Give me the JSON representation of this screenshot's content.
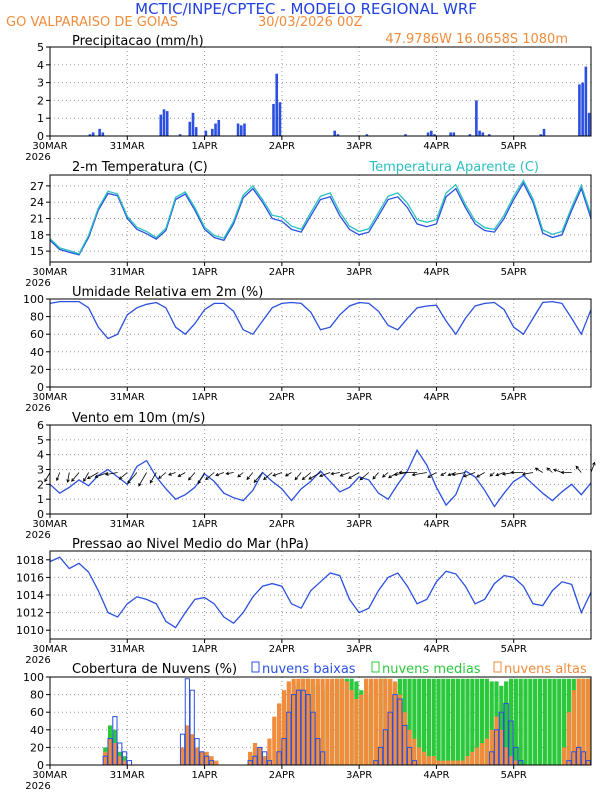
{
  "header": {
    "institution": "MCTIC/INPE/CPTEC - MODELO REGIONAL WRF",
    "location": "GO VALPARAISO DE GOIAS",
    "run_date": "30/03/2026 00Z",
    "coords": "47.9786W 16.0658S 1080m"
  },
  "colors": {
    "blue": "#2b50e0",
    "cyan": "#2cc0c0",
    "orange": "#f08c3c",
    "green": "#2cc83c",
    "header_blue": "#2040e0",
    "grid": "#9a9a9a"
  },
  "x_axis": {
    "ticks": [
      "30MAR",
      "31MAR",
      "1APR",
      "2APR",
      "3APR",
      "4APR",
      "5APR"
    ],
    "year": "2026",
    "hours_per_day": 24,
    "range_hours": [
      0,
      168
    ]
  },
  "chart_data": [
    {
      "id": "precip",
      "type": "bar",
      "title": "Precipitacao (mm/h)",
      "ylim": [
        0,
        5
      ],
      "yticks": [
        0,
        1,
        2,
        3,
        4,
        5
      ],
      "x_hours": [
        12,
        13,
        15,
        16,
        34,
        35,
        36,
        40,
        43,
        44,
        45,
        48,
        50,
        51,
        52,
        58,
        59,
        60,
        69,
        70,
        71,
        88,
        89,
        98,
        110,
        117,
        118,
        119,
        124,
        125,
        130,
        132,
        133,
        134,
        136,
        152,
        153,
        164,
        165,
        166,
        167
      ],
      "values": [
        0.1,
        0.2,
        0.4,
        0.2,
        1.2,
        1.5,
        1.4,
        0.1,
        0.8,
        1.3,
        0.5,
        0.3,
        0.4,
        0.7,
        0.9,
        0.7,
        0.6,
        0.7,
        1.8,
        3.5,
        1.9,
        0.3,
        0.1,
        0.1,
        0.1,
        0.2,
        0.3,
        0.1,
        0.2,
        0.2,
        0.1,
        2.0,
        0.3,
        0.2,
        0.1,
        0.1,
        0.4,
        2.9,
        3.0,
        3.9,
        1.3
      ]
    },
    {
      "id": "temperature",
      "type": "line",
      "title": "2-m Temperatura (C)",
      "legend": "Temperatura Aparente (C)",
      "ylim": [
        13,
        29
      ],
      "yticks": [
        15,
        18,
        21,
        24,
        27
      ],
      "x_step_hours": 3,
      "series": [
        {
          "name": "2-m Temperatura (C)",
          "color": "blue",
          "values": [
            17.0,
            15.3,
            14.8,
            14.3,
            17.5,
            22.5,
            25.6,
            25.2,
            21.0,
            19.0,
            18.2,
            17.2,
            18.8,
            24.5,
            25.5,
            22.5,
            19.0,
            17.5,
            17.0,
            20.0,
            24.8,
            26.5,
            24.0,
            21.0,
            20.5,
            19.0,
            18.5,
            21.5,
            24.5,
            25.0,
            21.5,
            19.0,
            18.0,
            18.5,
            21.5,
            24.5,
            25.0,
            23.0,
            20.0,
            19.5,
            20.0,
            25.0,
            26.5,
            23.0,
            20.0,
            18.8,
            18.5,
            21.0,
            24.5,
            27.5,
            24.0,
            18.3,
            17.5,
            18.0,
            22.5,
            26.5,
            21.0
          ]
        },
        {
          "name": "Temperatura Aparente (C)",
          "color": "cyan",
          "values": [
            17.3,
            15.6,
            15.1,
            14.5,
            17.9,
            22.9,
            26.0,
            25.5,
            21.4,
            19.4,
            18.6,
            17.5,
            19.2,
            24.9,
            25.9,
            23.0,
            19.4,
            17.9,
            17.4,
            20.5,
            25.3,
            27.0,
            24.5,
            21.6,
            21.2,
            19.6,
            19.0,
            22.1,
            25.1,
            25.7,
            22.2,
            19.6,
            18.6,
            19.1,
            22.1,
            25.1,
            25.7,
            23.8,
            20.8,
            20.3,
            20.8,
            25.7,
            27.2,
            23.6,
            20.6,
            19.3,
            19.0,
            21.6,
            25.1,
            28.0,
            24.6,
            18.9,
            18.1,
            18.6,
            23.1,
            27.1,
            21.7
          ]
        }
      ]
    },
    {
      "id": "humidity",
      "type": "line",
      "title": "Umidade Relativa em 2m (%)",
      "ylim": [
        0,
        100
      ],
      "yticks": [
        0,
        20,
        40,
        60,
        80,
        100
      ],
      "x_step_hours": 3,
      "series": [
        {
          "name": "Umidade Relativa",
          "color": "blue",
          "values": [
            95,
            97,
            97,
            97,
            90,
            68,
            55,
            60,
            82,
            90,
            94,
            96,
            90,
            68,
            60,
            72,
            88,
            95,
            95,
            86,
            65,
            60,
            75,
            90,
            95,
            96,
            95,
            85,
            65,
            68,
            82,
            92,
            96,
            95,
            86,
            70,
            65,
            78,
            90,
            92,
            93,
            75,
            60,
            78,
            92,
            95,
            96,
            88,
            68,
            60,
            78,
            96,
            97,
            95,
            78,
            60,
            88
          ]
        }
      ]
    },
    {
      "id": "wind",
      "type": "line",
      "title": "Vento em 10m (m/s)",
      "ylim": [
        0,
        6
      ],
      "yticks": [
        0,
        1,
        2,
        3,
        4,
        5,
        6
      ],
      "x_step_hours": 3,
      "series": [
        {
          "name": "Vento em 10m",
          "color": "blue",
          "values": [
            2.0,
            1.4,
            1.8,
            2.3,
            1.9,
            2.6,
            3.0,
            2.5,
            2.0,
            3.2,
            3.6,
            2.5,
            1.7,
            1.0,
            1.3,
            1.8,
            2.7,
            2.2,
            1.4,
            1.1,
            0.9,
            1.6,
            2.8,
            2.2,
            1.7,
            0.9,
            1.7,
            2.2,
            2.9,
            2.2,
            1.5,
            1.8,
            2.5,
            2.3,
            1.4,
            1.0,
            2.0,
            2.9,
            4.3,
            3.3,
            1.8,
            0.6,
            1.3,
            2.9,
            2.5,
            1.6,
            0.5,
            1.4,
            2.2,
            2.6,
            2.0,
            1.4,
            0.9,
            1.5,
            2.0,
            1.3,
            2.1
          ]
        }
      ],
      "arrow_level": 2.8,
      "arrow_direction_deg_from": [
        30,
        20,
        10,
        40,
        30,
        60,
        70,
        80,
        50,
        40,
        30,
        30,
        50,
        70,
        60,
        40,
        30,
        50,
        70,
        80,
        50,
        40,
        40,
        50,
        70,
        60,
        40,
        50,
        60,
        70,
        80,
        70,
        60,
        50,
        40,
        50,
        60,
        80,
        90,
        80,
        60,
        60,
        70,
        80,
        70,
        60,
        50,
        70,
        80,
        90,
        80,
        120,
        130,
        110,
        90,
        140,
        200
      ],
      "arrow_speed": [
        2.0,
        1.4,
        1.8,
        2.3,
        1.9,
        2.6,
        3.0,
        2.5,
        2.0,
        3.2,
        3.6,
        2.5,
        1.7,
        1.0,
        1.3,
        1.8,
        2.7,
        2.2,
        1.4,
        1.1,
        0.9,
        1.6,
        2.8,
        2.2,
        1.7,
        0.9,
        1.7,
        2.2,
        2.9,
        2.2,
        1.5,
        1.8,
        2.5,
        2.3,
        1.4,
        1.0,
        2.0,
        2.9,
        4.3,
        3.3,
        1.8,
        0.6,
        1.3,
        2.9,
        2.5,
        1.6,
        0.5,
        1.4,
        2.2,
        2.6,
        2.0,
        1.4,
        0.9,
        1.5,
        2.0,
        1.3,
        2.1
      ]
    },
    {
      "id": "pressure",
      "type": "line",
      "title": "Pressao ao Nivel Medio do Mar (hPa)",
      "ylim": [
        1009,
        1019
      ],
      "yticks": [
        1010,
        1012,
        1014,
        1016,
        1018
      ],
      "x_step_hours": 3,
      "series": [
        {
          "name": "Pressao",
          "color": "blue",
          "values": [
            1017.8,
            1018.3,
            1017.0,
            1017.6,
            1016.6,
            1014.5,
            1012.0,
            1011.5,
            1013.0,
            1013.8,
            1013.5,
            1013.0,
            1011.0,
            1010.3,
            1012.0,
            1013.5,
            1013.7,
            1013.0,
            1011.5,
            1010.8,
            1012.0,
            1013.8,
            1015.0,
            1015.3,
            1015.0,
            1013.0,
            1012.5,
            1014.5,
            1015.5,
            1016.5,
            1016.2,
            1013.5,
            1012.0,
            1012.5,
            1014.5,
            1016.0,
            1016.5,
            1015.0,
            1013.0,
            1013.5,
            1015.5,
            1016.7,
            1016.4,
            1015.0,
            1013.0,
            1013.5,
            1015.3,
            1016.2,
            1016.0,
            1015.0,
            1013.0,
            1012.8,
            1014.5,
            1015.5,
            1015.2,
            1012.0,
            1014.3
          ]
        }
      ]
    },
    {
      "id": "clouds",
      "type": "bar",
      "title": "Cobertura de Nuvens (%)",
      "legend": [
        "nuvens baixas",
        "nuvens medias",
        "nuvens altas"
      ],
      "ylim": [
        0,
        100
      ],
      "yticks": [
        0,
        20,
        40,
        60,
        80,
        100
      ],
      "x_step_hours": 1.5,
      "series": [
        {
          "name": "nuvens baixas",
          "color": "blue",
          "values": [
            0,
            0,
            0,
            0,
            0,
            0,
            0,
            0,
            0,
            0,
            0,
            10,
            30,
            55,
            25,
            15,
            5,
            0,
            0,
            0,
            0,
            0,
            0,
            0,
            0,
            0,
            0,
            35,
            98,
            85,
            30,
            15,
            10,
            5,
            0,
            0,
            0,
            0,
            0,
            0,
            0,
            5,
            10,
            20,
            15,
            5,
            0,
            15,
            30,
            60,
            80,
            85,
            85,
            80,
            60,
            30,
            15,
            0,
            0,
            0,
            0,
            0,
            0,
            0,
            0,
            0,
            0,
            5,
            20,
            40,
            60,
            80,
            75,
            45,
            20,
            5,
            0,
            0,
            0,
            0,
            0,
            0,
            0,
            0,
            0,
            0,
            0,
            0,
            0,
            0,
            0,
            15,
            40,
            60,
            70,
            50,
            20,
            5,
            0,
            0,
            0,
            0,
            0,
            0,
            0,
            0,
            0,
            5,
            15,
            20,
            15,
            5
          ]
        },
        {
          "name": "nuvens medias",
          "color": "green",
          "values": [
            0,
            0,
            0,
            0,
            0,
            0,
            0,
            0,
            0,
            0,
            0,
            20,
            45,
            40,
            15,
            10,
            0,
            0,
            0,
            0,
            0,
            0,
            0,
            0,
            0,
            0,
            0,
            15,
            40,
            30,
            15,
            10,
            5,
            0,
            0,
            0,
            0,
            0,
            0,
            0,
            0,
            10,
            20,
            15,
            10,
            0,
            0,
            20,
            50,
            70,
            90,
            95,
            98,
            98,
            95,
            90,
            85,
            90,
            95,
            98,
            98,
            98,
            98,
            95,
            85,
            80,
            90,
            95,
            98,
            98,
            95,
            92,
            98,
            98,
            98,
            98,
            98,
            98,
            98,
            98,
            98,
            98,
            98,
            98,
            98,
            98,
            98,
            98,
            98,
            98,
            98,
            95,
            95,
            90,
            95,
            98,
            98,
            98,
            98,
            98,
            98,
            98,
            98,
            98,
            98,
            98,
            98,
            98,
            98,
            98,
            98,
            98
          ]
        },
        {
          "name": "nuvens altas",
          "color": "orange",
          "values": [
            0,
            0,
            0,
            0,
            0,
            0,
            0,
            0,
            0,
            0,
            0,
            15,
            30,
            25,
            10,
            5,
            0,
            0,
            0,
            0,
            0,
            0,
            0,
            0,
            0,
            0,
            0,
            20,
            45,
            35,
            20,
            15,
            15,
            10,
            5,
            0,
            0,
            0,
            0,
            0,
            0,
            15,
            25,
            20,
            10,
            30,
            55,
            70,
            85,
            95,
            98,
            98,
            98,
            98,
            98,
            98,
            98,
            98,
            98,
            98,
            98,
            95,
            85,
            75,
            80,
            98,
            98,
            98,
            98,
            98,
            98,
            95,
            80,
            60,
            40,
            30,
            20,
            15,
            10,
            10,
            5,
            5,
            5,
            5,
            5,
            5,
            10,
            15,
            20,
            25,
            30,
            40,
            55,
            40,
            20,
            10,
            5,
            0,
            0,
            0,
            0,
            0,
            0,
            0,
            0,
            0,
            20,
            60,
            85,
            98,
            98,
            98
          ]
        }
      ]
    }
  ]
}
